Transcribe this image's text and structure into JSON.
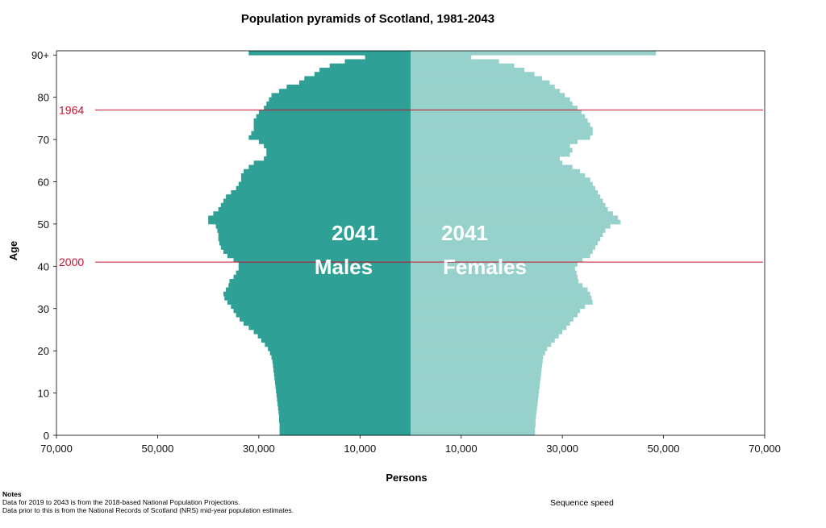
{
  "colors": {
    "males": "#2fa096",
    "females": "#97d1cb",
    "marker": "#c8102e",
    "frame": "#000000"
  },
  "labels": {
    "male_year": "2041",
    "male_sex": "Males",
    "female_year": "2041",
    "female_sex": "Females"
  },
  "notes": {
    "heading": "Notes",
    "line1": "Data for 2019 to 2043 is from the 2018-based National Population Projections.",
    "line2": "Data prior to this is from the National Records of Scotland (NRS) mid-year population estimates."
  },
  "controls": {
    "sequence_speed": "Sequence speed"
  },
  "chart_data": {
    "type": "bar",
    "orientation": "horizontal-pyramid",
    "title": "Population pyramids of Scotland, 1981-2043",
    "xlabel": "Persons",
    "ylabel": "Age",
    "xlim": [
      -70000,
      70000
    ],
    "ylim": [
      0,
      90
    ],
    "x_ticks": [
      {
        "value": -70000,
        "label": "70,000"
      },
      {
        "value": -50000,
        "label": "50,000"
      },
      {
        "value": -30000,
        "label": "30,000"
      },
      {
        "value": -10000,
        "label": "10,000"
      },
      {
        "value": 10000,
        "label": "10,000"
      },
      {
        "value": 30000,
        "label": "30,000"
      },
      {
        "value": 50000,
        "label": "50,000"
      },
      {
        "value": 70000,
        "label": "70,000"
      }
    ],
    "y_ticks": [
      {
        "value": 0,
        "label": "0"
      },
      {
        "value": 10,
        "label": "10"
      },
      {
        "value": 20,
        "label": "20"
      },
      {
        "value": 30,
        "label": "30"
      },
      {
        "value": 40,
        "label": "40"
      },
      {
        "value": 50,
        "label": "50"
      },
      {
        "value": 60,
        "label": "60"
      },
      {
        "value": 70,
        "label": "70"
      },
      {
        "value": 80,
        "label": "80"
      },
      {
        "value": 90,
        "label": "90+"
      }
    ],
    "grid": false,
    "legend": "none",
    "birth_cohort_markers": [
      {
        "label": "1964",
        "age": 77
      },
      {
        "label": "2000",
        "age": 41
      }
    ],
    "ages": [
      0,
      1,
      2,
      3,
      4,
      5,
      6,
      7,
      8,
      9,
      10,
      11,
      12,
      13,
      14,
      15,
      16,
      17,
      18,
      19,
      20,
      21,
      22,
      23,
      24,
      25,
      26,
      27,
      28,
      29,
      30,
      31,
      32,
      33,
      34,
      35,
      36,
      37,
      38,
      39,
      40,
      41,
      42,
      43,
      44,
      45,
      46,
      47,
      48,
      49,
      50,
      51,
      52,
      53,
      54,
      55,
      56,
      57,
      58,
      59,
      60,
      61,
      62,
      63,
      64,
      65,
      66,
      67,
      68,
      69,
      70,
      71,
      72,
      73,
      74,
      75,
      76,
      77,
      78,
      79,
      80,
      81,
      82,
      83,
      84,
      85,
      86,
      87,
      88,
      89,
      90
    ],
    "series": [
      {
        "name": "Males",
        "values": [
          25900,
          25900,
          25900,
          26000,
          26000,
          26100,
          26200,
          26300,
          26400,
          26500,
          26600,
          26700,
          26800,
          26900,
          27000,
          27100,
          27200,
          27300,
          27500,
          27800,
          28200,
          28800,
          29500,
          30200,
          31000,
          32000,
          33000,
          33800,
          34500,
          35000,
          35500,
          36200,
          36800,
          37000,
          36500,
          36000,
          35800,
          35000,
          34500,
          34000,
          34000,
          35000,
          36200,
          37000,
          37500,
          37800,
          38000,
          38000,
          38200,
          38500,
          40000,
          40000,
          39000,
          38000,
          37500,
          37000,
          36500,
          35500,
          34500,
          34000,
          33500,
          33500,
          33000,
          32000,
          31000,
          29000,
          28500,
          28500,
          29000,
          30000,
          32000,
          31500,
          31000,
          31000,
          31000,
          30500,
          30000,
          29000,
          28500,
          28000,
          27500,
          26000,
          24500,
          22000,
          21000,
          19000,
          18000,
          16000,
          13000,
          9000,
          32000
        ]
      },
      {
        "name": "Females",
        "values": [
          24600,
          24600,
          24700,
          24700,
          24800,
          24900,
          25000,
          25100,
          25200,
          25300,
          25400,
          25500,
          25600,
          25700,
          25800,
          25900,
          26000,
          26100,
          26200,
          26600,
          27000,
          27800,
          28500,
          29300,
          30000,
          30800,
          31500,
          32200,
          33000,
          33500,
          34500,
          36000,
          35800,
          35500,
          35000,
          34000,
          33200,
          33000,
          32800,
          32500,
          33000,
          34000,
          35500,
          36000,
          36500,
          37000,
          37500,
          38000,
          38500,
          39500,
          41500,
          41000,
          40000,
          39000,
          38500,
          38000,
          37500,
          37000,
          36500,
          36000,
          35500,
          34500,
          33500,
          32000,
          30000,
          29500,
          31500,
          32000,
          31500,
          33000,
          35500,
          36000,
          36000,
          35500,
          35000,
          34500,
          33800,
          33000,
          32000,
          31500,
          30500,
          29500,
          28500,
          27500,
          26000,
          24500,
          22500,
          20500,
          17500,
          12000,
          48500
        ]
      }
    ]
  }
}
